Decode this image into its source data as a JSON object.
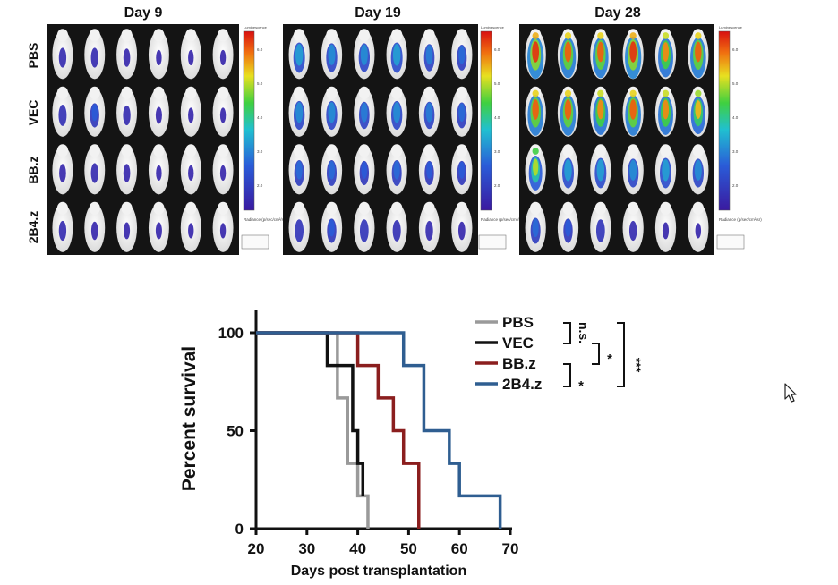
{
  "imaging": {
    "days": [
      "Day 9",
      "Day 19",
      "Day 28"
    ],
    "groups": [
      "PBS",
      "VEC",
      "BB.z",
      "2B4.z"
    ],
    "scale_title": "Luminescence",
    "scale_units_label": "Radiance (p/sec/cm²/sr)",
    "scale_tick_labels": [
      "6.0",
      "5.0",
      "4.0",
      "3.0",
      "2.0"
    ],
    "signal_levels": [
      [
        [
          0.2,
          0.2,
          0.15,
          0.05,
          0.05,
          0.05
        ],
        [
          0.25,
          0.35,
          0.2,
          0.1,
          0.05,
          0.05
        ],
        [
          0.15,
          0.2,
          0.15,
          0.05,
          0.05,
          0.05
        ],
        [
          0.2,
          0.15,
          0.1,
          0.1,
          0.05,
          0.05
        ]
      ],
      [
        [
          0.55,
          0.5,
          0.5,
          0.55,
          0.45,
          0.4
        ],
        [
          0.5,
          0.5,
          0.45,
          0.5,
          0.45,
          0.4
        ],
        [
          0.4,
          0.4,
          0.35,
          0.4,
          0.35,
          0.35
        ],
        [
          0.3,
          0.35,
          0.3,
          0.25,
          0.2,
          0.15
        ]
      ],
      [
        [
          0.95,
          0.9,
          0.9,
          0.95,
          0.85,
          0.9
        ],
        [
          0.9,
          0.9,
          0.85,
          0.9,
          0.85,
          0.8
        ],
        [
          0.7,
          0.55,
          0.55,
          0.5,
          0.55,
          0.5
        ],
        [
          0.4,
          0.35,
          0.3,
          0.2,
          0.1,
          0.05
        ]
      ]
    ]
  },
  "chart_data": {
    "type": "line",
    "subtype": "kaplan-meier survival (step)",
    "xlabel": "Days post transplantation",
    "ylabel": "Percent survival",
    "xlim": [
      20,
      70
    ],
    "ylim": [
      0,
      100
    ],
    "x_ticks": [
      20,
      30,
      40,
      50,
      60,
      70
    ],
    "y_ticks": [
      0,
      50,
      100
    ],
    "series": [
      {
        "name": "PBS",
        "color": "#9a9a9a",
        "x": [
          20,
          34,
          36,
          38,
          40,
          42
        ],
        "y": [
          100,
          100,
          66.7,
          33.3,
          16.7,
          0
        ]
      },
      {
        "name": "VEC",
        "color": "#111111",
        "x": [
          20,
          29,
          34,
          39,
          40,
          41
        ],
        "y": [
          100,
          100,
          83.3,
          50,
          33.3,
          16.7
        ]
      },
      {
        "name": "BB.z",
        "color": "#8b1e1e",
        "x": [
          20,
          38,
          40,
          44,
          47,
          49,
          52
        ],
        "y": [
          100,
          100,
          83.3,
          66.7,
          50,
          33.3,
          0
        ]
      },
      {
        "name": "2B4.z",
        "color": "#2f5e91",
        "x": [
          20,
          47,
          49,
          53,
          58,
          60,
          68
        ],
        "y": [
          100,
          100,
          83.3,
          50,
          33.3,
          16.7,
          0
        ]
      }
    ],
    "significance": [
      {
        "between": [
          "PBS",
          "VEC"
        ],
        "label": "n.s."
      },
      {
        "between": [
          "VEC",
          "BB.z"
        ],
        "label": "*"
      },
      {
        "between": [
          "BB.z",
          "2B4.z"
        ],
        "label": "*"
      },
      {
        "between": [
          "PBS",
          "2B4.z"
        ],
        "label": "***"
      }
    ]
  },
  "cursor": {
    "icon": "arrow-cursor-icon"
  }
}
